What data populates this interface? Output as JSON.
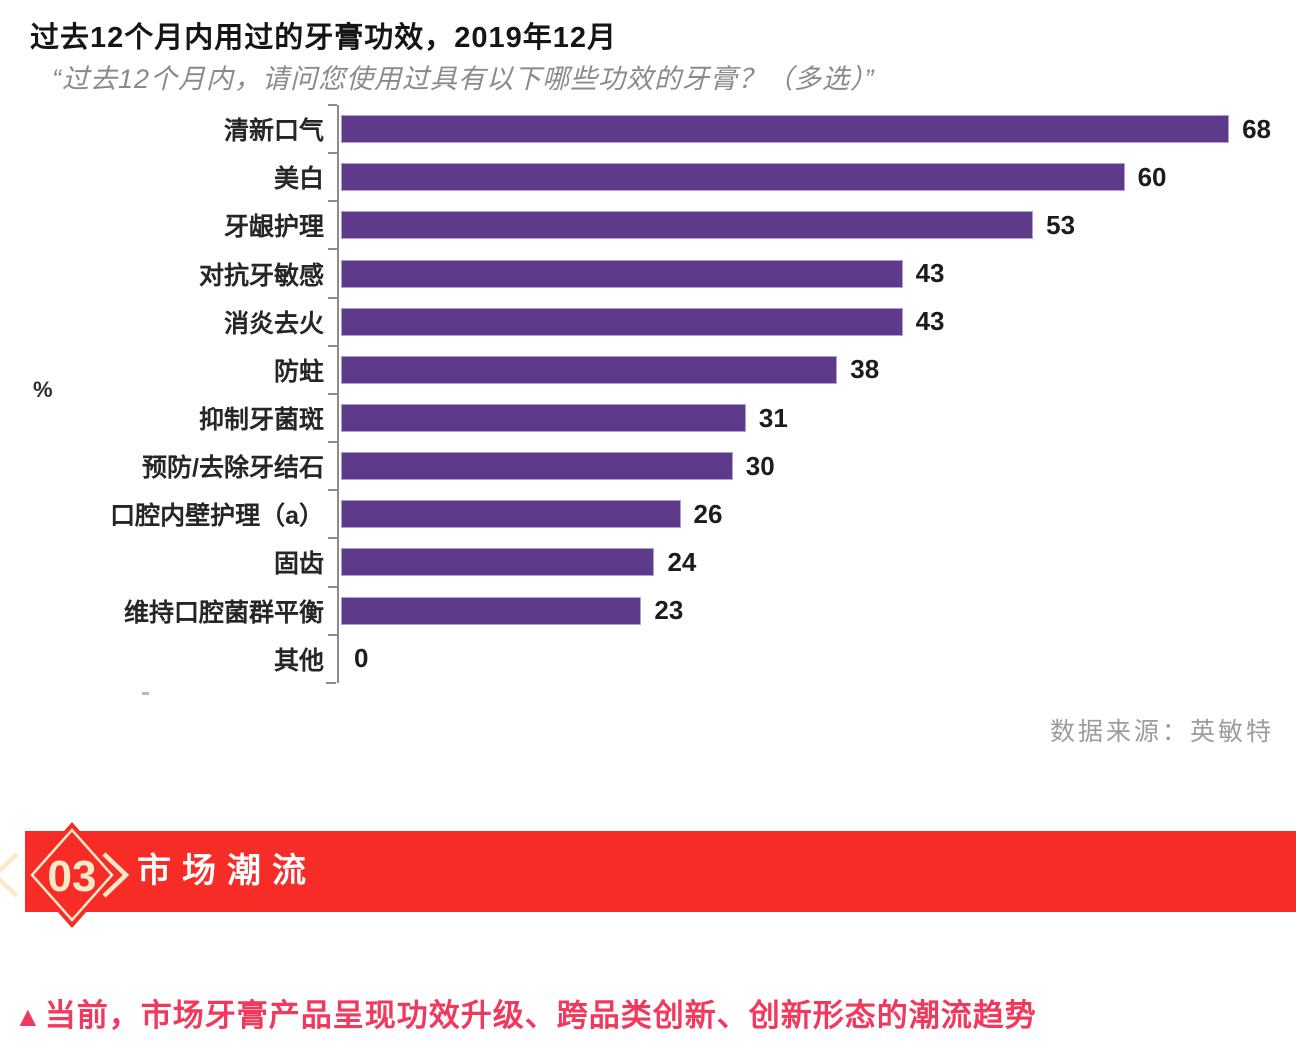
{
  "chart": {
    "title": "过去12个月内用过的牙膏功效，2019年12月",
    "subtitle": "“过去12个月内，请问您使用过具有以下哪些功效的牙膏？（多选）”",
    "unit_label": "%",
    "source": "数据来源：英敏特"
  },
  "chart_data": {
    "type": "bar",
    "orientation": "horizontal",
    "title": "过去12个月内用过的牙膏功效，2019年12月",
    "subtitle": "“过去12个月内，请问您使用过具有以下哪些功效的牙膏？（多选）”",
    "categories": [
      "清新口气",
      "美白",
      "牙龈护理",
      "对抗牙敏感",
      "消炎去火",
      "防蛀",
      "抑制牙菌斑",
      "预防/去除牙结石",
      "口腔内壁护理（a）",
      "固齿",
      "维持口腔菌群平衡",
      "其他"
    ],
    "values": [
      68,
      60,
      53,
      43,
      43,
      38,
      31,
      30,
      26,
      24,
      23,
      0
    ],
    "xlabel": "%",
    "ylabel": "",
    "xlim": [
      0,
      72
    ],
    "grid": false,
    "legend": false,
    "data_labels": true,
    "bar_color": "#5E3B8A",
    "axis_color": "#8c8c8c"
  },
  "section_banner": {
    "number": "03",
    "title": "市场潮流",
    "bg_color": "#F72C27",
    "accent_color": "#F8E9C8",
    "title_color": "#FFFFFF"
  },
  "callout": {
    "marker": "▲",
    "text": "当前，市场牙膏产品呈现功效升级、跨品类创新、创新形态的潮流趋势",
    "color": "#F0395C"
  }
}
